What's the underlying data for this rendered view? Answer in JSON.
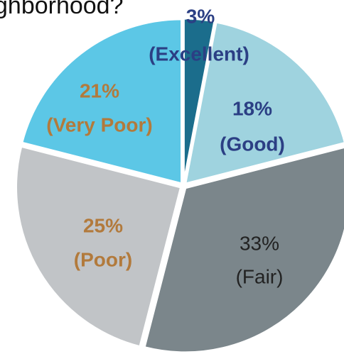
{
  "chart_data": {
    "type": "pie",
    "title": "ghborhood?",
    "categories": [
      "(Excellent)",
      "(Good)",
      "(Fair)",
      "(Poor)",
      "(Very Poor)"
    ],
    "values": [
      3,
      18,
      33,
      25,
      21
    ],
    "value_labels": [
      "3%",
      "18%",
      "33%",
      "25%",
      "21%"
    ],
    "colors": [
      "#1b6d8c",
      "#9fd3df",
      "#7b868b",
      "#c1c4c7",
      "#5cc7e6"
    ],
    "label_colors": [
      "#2b3f84",
      "#2b3f84",
      "#222222",
      "#b27a3c",
      "#b27a3c"
    ]
  }
}
